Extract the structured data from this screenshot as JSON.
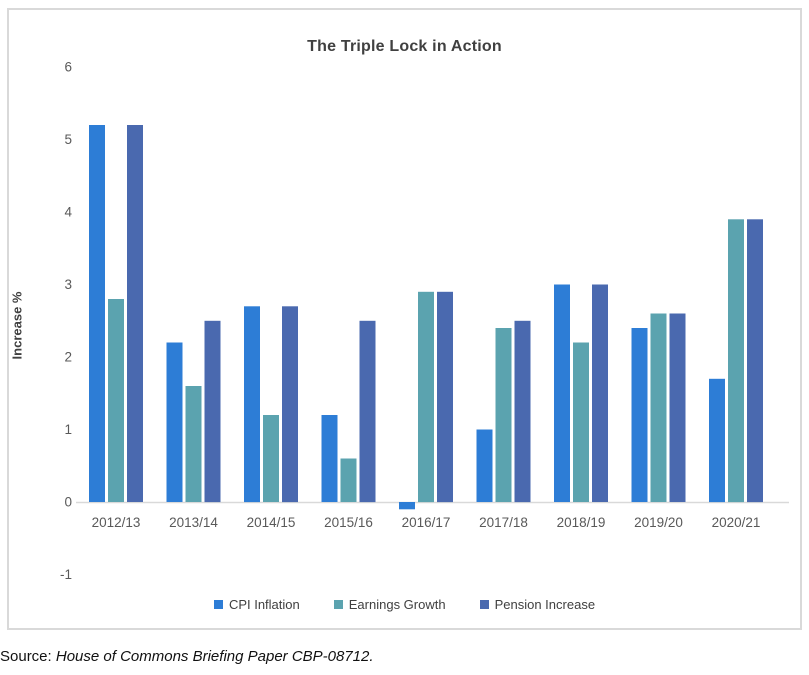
{
  "page": {
    "source_prefix": "Source: ",
    "source_citation": "House of Commons Briefing Paper CBP-08712."
  },
  "chart_data": {
    "type": "bar",
    "title": "The Triple Lock in Action",
    "xlabel": "",
    "ylabel": "Increase %",
    "categories": [
      "2012/13",
      "2013/14",
      "2014/15",
      "2015/16",
      "2016/17",
      "2017/18",
      "2018/19",
      "2019/20",
      "2020/21"
    ],
    "series": [
      {
        "name": "CPI Inflation",
        "color": "#2D7DD6",
        "values": [
          5.2,
          2.2,
          2.7,
          1.2,
          -0.1,
          1.0,
          3.0,
          2.4,
          1.7
        ]
      },
      {
        "name": "Earnings Growth",
        "color": "#5BA3AF",
        "values": [
          2.8,
          1.6,
          1.2,
          0.6,
          2.9,
          2.4,
          2.2,
          2.6,
          3.9
        ]
      },
      {
        "name": "Pension Increase",
        "color": "#4A69AF",
        "values": [
          5.2,
          2.5,
          2.7,
          2.5,
          2.9,
          2.5,
          3.0,
          2.6,
          3.9
        ]
      }
    ],
    "ylim": [
      -1,
      6
    ],
    "y_ticks": [
      6,
      5,
      4,
      3,
      2,
      1,
      0,
      -1
    ],
    "grid": false,
    "legend_position": "bottom",
    "colors": {
      "axis_line": "#D9D9D9",
      "frame_border": "#D9D9D9",
      "tick_label": "#595959",
      "title_text": "#404040"
    }
  }
}
